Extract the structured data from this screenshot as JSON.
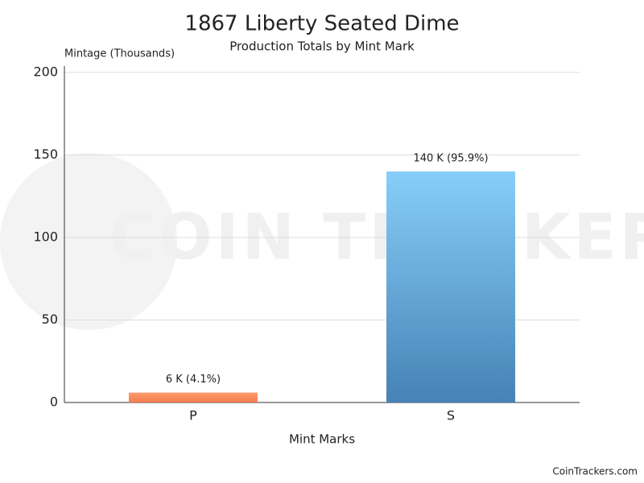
{
  "chart_data": {
    "type": "bar",
    "title": "1867 Liberty Seated Dime",
    "subtitle": "Production Totals by Mint Mark",
    "y_label": "Mintage (Thousands)",
    "x_label": "Mint Marks",
    "categories": [
      "P",
      "S"
    ],
    "values": [
      6,
      140
    ],
    "value_labels": [
      "6 K (4.1%)",
      "140 K (95.9%)"
    ],
    "colors": [
      [
        "#ff9a6c",
        "#f47d4e"
      ],
      [
        "#87cefa",
        "#4682b4"
      ]
    ],
    "ylim": [
      0,
      200
    ],
    "yticks": [
      0,
      50,
      100,
      150,
      200
    ],
    "grid": true,
    "watermark": "COIN TRACKERS",
    "credit": "CoinTrackers.com"
  }
}
